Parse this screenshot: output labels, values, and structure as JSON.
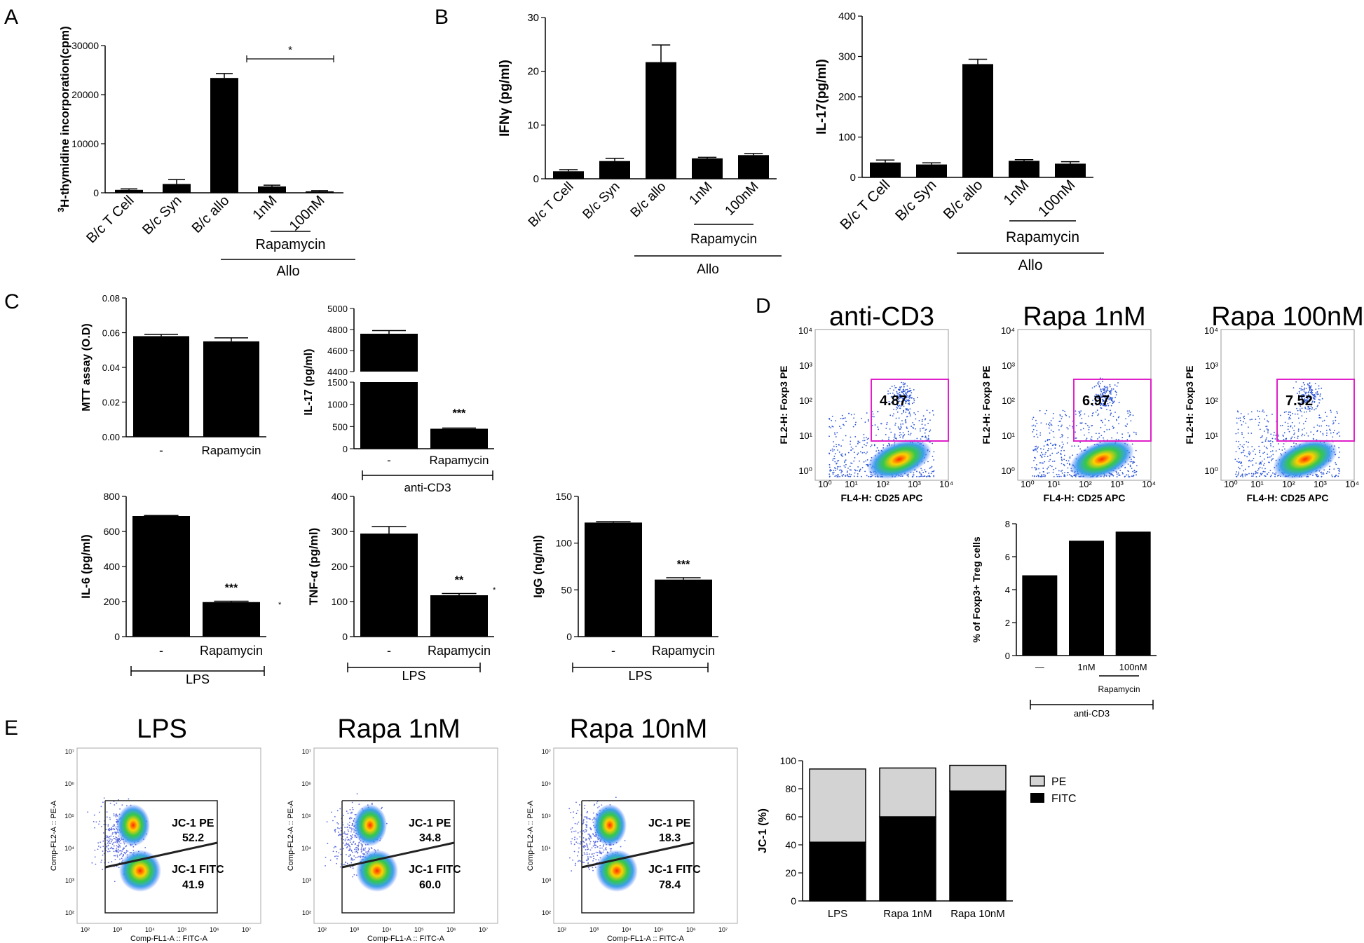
{
  "panel_labels": {
    "A": "A",
    "B": "B",
    "C": "C",
    "D": "D",
    "E": "E"
  },
  "chart_data": [
    {
      "id": "A",
      "type": "bar",
      "categories": [
        "B/c T Cell",
        "B/c Syn",
        "B/c allo",
        "1nM",
        "100nM"
      ],
      "values": [
        600,
        1800,
        23400,
        1300,
        300
      ],
      "errors": [
        200,
        900,
        900,
        250,
        150
      ],
      "ylabel_sup": "3",
      "ylabel": "H-thymidine incorporation(cpm)",
      "yticks": [
        0,
        10000,
        20000,
        30000
      ],
      "ylim": [
        0,
        30000
      ],
      "significance": "*",
      "group_labels": [
        "Rapamycin",
        "Allo"
      ]
    },
    {
      "id": "B1",
      "type": "bar",
      "categories": [
        "B/c T Cell",
        "B/c Syn",
        "B/c allo",
        "1nM",
        "100nM"
      ],
      "values": [
        1.4,
        3.3,
        21.7,
        3.8,
        4.4
      ],
      "errors": [
        0.3,
        0.5,
        3.2,
        0.2,
        0.3
      ],
      "ylabel": "IFNγ (pg/ml)",
      "yticks": [
        0,
        10,
        20,
        30
      ],
      "ylim": [
        0,
        30
      ],
      "group_labels": [
        "Rapamycin",
        "Allo"
      ]
    },
    {
      "id": "B2",
      "type": "bar",
      "categories": [
        "B/c T Cell",
        "B/c Syn",
        "B/c allo",
        "1nM",
        "100nM"
      ],
      "values": [
        37,
        32,
        281,
        41,
        34
      ],
      "errors": [
        6,
        4,
        12,
        3,
        5
      ],
      "ylabel": "IL-17(pg/ml)",
      "yticks": [
        0,
        100,
        200,
        300,
        400
      ],
      "ylim": [
        0,
        400
      ],
      "group_labels": [
        "Rapamycin",
        "Allo"
      ]
    },
    {
      "id": "C1",
      "type": "bar",
      "categories": [
        "-",
        "Rapamycin"
      ],
      "values": [
        0.058,
        0.055
      ],
      "errors": [
        0.001,
        0.002
      ],
      "ylabel": "MTT assay (O.D)",
      "yticks": [
        "0.00",
        "0.02",
        "0.04",
        "0.06",
        "0.08"
      ],
      "ylim": [
        0,
        0.08
      ]
    },
    {
      "id": "C2",
      "type": "bar",
      "categories": [
        "-",
        "Rapamycin"
      ],
      "values": [
        4760,
        450
      ],
      "errors": [
        30,
        15
      ],
      "ylabel": "IL-17 (pg/ml)",
      "axis_break": true,
      "yticks_upper": [
        4400,
        4600,
        4800,
        5000
      ],
      "yticks_lower": [
        0,
        500,
        1000,
        1500
      ],
      "significance": "***",
      "group_labels": [
        "anti-CD3"
      ]
    },
    {
      "id": "C3",
      "type": "bar",
      "categories": [
        "-",
        "Rapamycin"
      ],
      "values": [
        688,
        197
      ],
      "errors": [
        3,
        5
      ],
      "ylabel": "IL-6 (pg/ml)",
      "yticks": [
        0,
        200,
        400,
        600,
        800
      ],
      "ylim": [
        0,
        800
      ],
      "significance": "***",
      "group_labels": [
        "LPS"
      ]
    },
    {
      "id": "C4",
      "type": "bar",
      "categories": [
        "-",
        "Rapamycin"
      ],
      "values": [
        294,
        118
      ],
      "errors": [
        20,
        5
      ],
      "ylabel": "TNF-α (pg/ml)",
      "yticks": [
        0,
        100,
        200,
        300,
        400
      ],
      "ylim": [
        0,
        400
      ],
      "significance": "**",
      "group_labels": [
        "LPS"
      ]
    },
    {
      "id": "C5",
      "type": "bar",
      "categories": [
        "-",
        "Rapamycin"
      ],
      "values": [
        122,
        61
      ],
      "errors": [
        1,
        2
      ],
      "ylabel": "IgG (ng/ml)",
      "yticks": [
        0,
        50,
        100,
        150
      ],
      "ylim": [
        0,
        150
      ],
      "significance": "***",
      "group_labels": [
        "LPS"
      ]
    },
    {
      "id": "D_bar",
      "type": "bar",
      "categories": [
        "—",
        "1nM",
        "100nM"
      ],
      "values": [
        4.87,
        6.97,
        7.52
      ],
      "ylabel": "% of Foxp3+ Treg cells",
      "yticks": [
        0,
        2,
        4,
        6,
        8
      ],
      "ylim": [
        0,
        8
      ],
      "group_labels": [
        "Rapamycin",
        "anti-CD3"
      ]
    },
    {
      "id": "E_bar",
      "type": "bar",
      "categories": [
        "LPS",
        "Rapa 1nM",
        "Rapa 10nM"
      ],
      "series": [
        {
          "name": "FITC",
          "values": [
            41.9,
            60.0,
            78.4
          ]
        },
        {
          "name": "PE",
          "values": [
            52.2,
            34.8,
            18.3
          ]
        }
      ],
      "ylabel": "JC-1 (%)",
      "yticks": [
        0,
        20,
        40,
        60,
        80,
        100
      ],
      "ylim": [
        0,
        100
      ],
      "legend": "right"
    }
  ],
  "flow_D": [
    {
      "title": "anti-CD3",
      "value": "4.87"
    },
    {
      "title": "Rapa 1nM",
      "value": "6.97"
    },
    {
      "title": "Rapa 100nM",
      "value": "7.52"
    }
  ],
  "flow_D_axes": {
    "y": "FL2-H: Foxp3 PE",
    "x": "FL4-H: CD25 APC"
  },
  "flow_E": [
    {
      "title": "LPS",
      "pe": "52.2",
      "fitc": "41.9"
    },
    {
      "title": "Rapa 1nM",
      "pe": "34.8",
      "fitc": "60.0"
    },
    {
      "title": "Rapa 10nM",
      "pe": "18.3",
      "fitc": "78.4"
    }
  ],
  "flow_E_axes": {
    "y": "Comp-FL2-A :: PE-A",
    "x": "Comp-FL1-A :: FITC-A",
    "pe_label": "JC-1 PE",
    "fitc_label": "JC-1 FITC"
  }
}
